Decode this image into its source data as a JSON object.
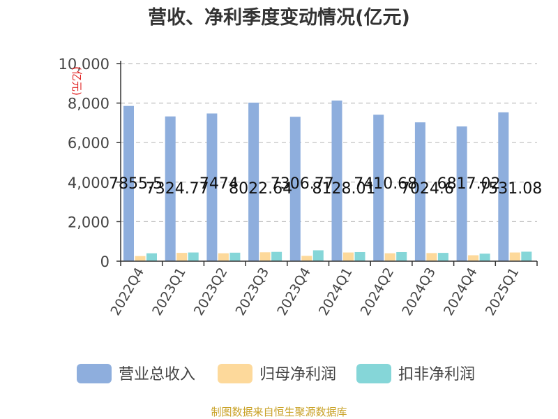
{
  "chart_data": {
    "type": "bar",
    "title": "营收、净利季度变动情况(亿元)",
    "ylabel": "(亿元)",
    "xlabel": "",
    "ylim": [
      0,
      10000
    ],
    "yticks": [
      "0",
      "2,000",
      "4,000",
      "6,000",
      "8,000",
      "10,000"
    ],
    "grid": true,
    "legend_position": "bottom",
    "categories": [
      "2022Q4",
      "2023Q1",
      "2023Q2",
      "2023Q3",
      "2023Q4",
      "2024Q1",
      "2024Q2",
      "2024Q3",
      "2024Q4",
      "2025Q1"
    ],
    "series": [
      {
        "name": "营业总收入",
        "color": "#8eaedd",
        "values": [
          7855.5,
          7324.77,
          7474,
          8022.64,
          7306.77,
          8128.01,
          7410.68,
          7024.6,
          6817.02,
          7531.08
        ],
        "labels": [
          "7855.5",
          "7324.77",
          "7474",
          "8022.64",
          "7306.77",
          "8128.01",
          "7410.68",
          "7024.6",
          "6817.02",
          "7531.08"
        ]
      },
      {
        "name": "归母净利润",
        "color": "#fdd99b",
        "values": [
          260,
          420,
          400,
          450,
          270,
          440,
          400,
          410,
          300,
          440
        ]
      },
      {
        "name": "扣非净利润",
        "color": "#85d6d8",
        "values": [
          400,
          440,
          430,
          470,
          550,
          460,
          460,
          420,
          380,
          480
        ]
      }
    ],
    "source": "制图数据来自恒生聚源数据库"
  }
}
